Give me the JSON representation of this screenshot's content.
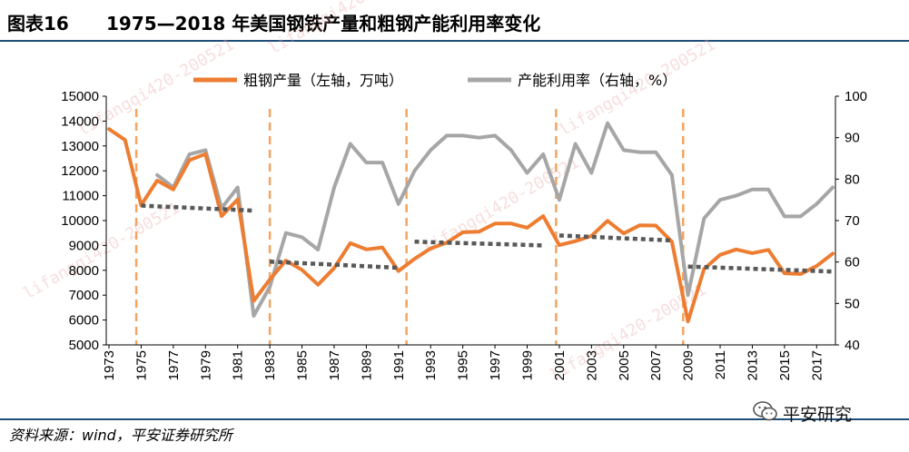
{
  "figure": {
    "number": "图表16",
    "title": "1975—2018 年美国钢铁产量和粗钢产能利用率变化",
    "source": "资料来源：wind，平安证券研究所",
    "brand": "平安研究",
    "watermark": "lifangqi420-200521"
  },
  "chart_data": {
    "type": "line",
    "x": [
      1973,
      1974,
      1975,
      1976,
      1977,
      1978,
      1979,
      1980,
      1981,
      1982,
      1983,
      1984,
      1985,
      1986,
      1987,
      1988,
      1989,
      1990,
      1991,
      1992,
      1993,
      1994,
      1995,
      1996,
      1997,
      1998,
      1999,
      2000,
      2001,
      2002,
      2003,
      2004,
      2005,
      2006,
      2007,
      2008,
      2009,
      2010,
      2011,
      2012,
      2013,
      2014,
      2015,
      2016,
      2017,
      2018
    ],
    "x_ticks": [
      "1973",
      "1975",
      "1977",
      "1979",
      "1981",
      "1983",
      "1985",
      "1987",
      "1989",
      "1991",
      "1993",
      "1995",
      "1997",
      "1999",
      "2001",
      "2003",
      "2005",
      "2007",
      "2009",
      "2011",
      "2013",
      "2015",
      "2017"
    ],
    "y_left_ticks": [
      "5000",
      "6000",
      "7000",
      "8000",
      "9000",
      "10000",
      "11000",
      "12000",
      "13000",
      "14000",
      "15000"
    ],
    "y_right_ticks": [
      "40",
      "50",
      "60",
      "70",
      "80",
      "90",
      "100"
    ],
    "ylim_left": [
      5000,
      15000
    ],
    "ylim_right": [
      40,
      100
    ],
    "series": [
      {
        "name": "粗钢产量（左轴，万吨）",
        "axis": "left",
        "color": "#ed7d31",
        "values": [
          13680,
          13240,
          10620,
          11610,
          11250,
          12430,
          12670,
          10180,
          10850,
          6770,
          7630,
          8390,
          8020,
          7420,
          8090,
          9090,
          8840,
          8920,
          7970,
          8460,
          8880,
          9110,
          9530,
          9550,
          9880,
          9880,
          9710,
          10180,
          9010,
          9170,
          9380,
          9990,
          9480,
          9810,
          9800,
          9150,
          5940,
          8050,
          8620,
          8840,
          8690,
          8820,
          7880,
          7850,
          8170,
          8670
        ]
      },
      {
        "name": "产能利用率（右轴，%）",
        "axis": "right",
        "color": "#a6a6a6",
        "values": [
          null,
          null,
          null,
          81,
          78,
          86,
          87,
          73,
          78,
          47,
          54,
          67,
          66,
          63,
          78,
          88.5,
          84,
          84,
          74,
          82,
          87,
          90.5,
          90.5,
          90,
          90.5,
          87,
          81.5,
          86,
          75,
          88.5,
          81.5,
          93.5,
          87,
          86.5,
          86.5,
          81,
          52,
          70.5,
          75,
          76,
          77.5,
          77.5,
          71,
          71,
          74,
          78
        ]
      }
    ],
    "trend_segments": [
      {
        "x": [
          1975,
          1982
        ],
        "y": [
          10600,
          10400
        ]
      },
      {
        "x": [
          1983,
          1991
        ],
        "y": [
          8350,
          8100
        ]
      },
      {
        "x": [
          1992,
          2000
        ],
        "y": [
          9150,
          9000
        ]
      },
      {
        "x": [
          2001,
          2008
        ],
        "y": [
          9400,
          9200
        ]
      },
      {
        "x": [
          2009,
          2018
        ],
        "y": [
          8150,
          7950
        ]
      }
    ],
    "divider_years": [
      1974.7,
      1983.0,
      1991.5,
      2000.8,
      2008.7
    ],
    "colors": {
      "trend": "#595959",
      "divider": "#f4a460",
      "axis": "#000000"
    }
  }
}
